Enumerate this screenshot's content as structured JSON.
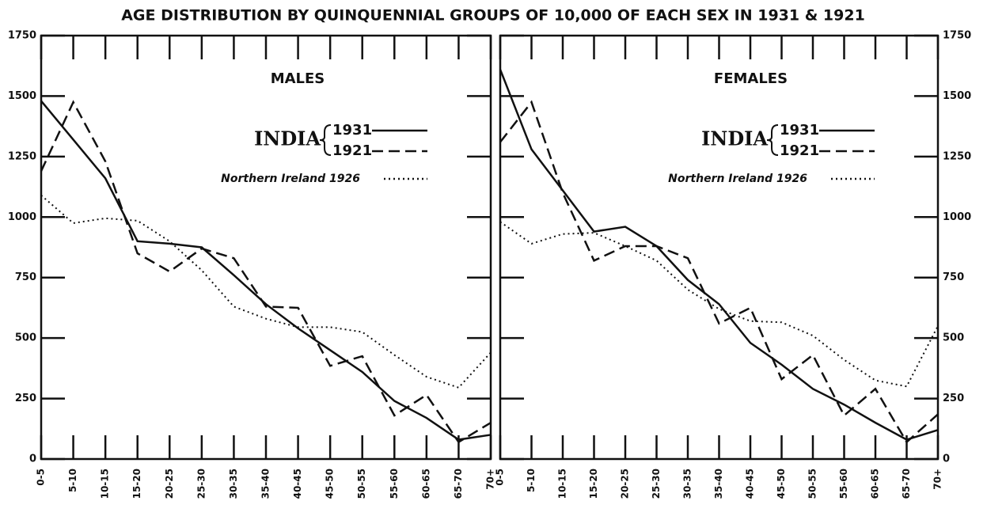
{
  "title": "AGE DISTRIBUTION BY QUINQUENNIAL GROUPS OF 10,000 OF EACH SEX IN 1931 & 1921",
  "chart_data": [
    {
      "type": "line",
      "subtitle": "MALES",
      "legend_title": "INDIA",
      "y_axis_side": "left",
      "categories": [
        "0-5",
        "5-10",
        "10-15",
        "15-20",
        "20-25",
        "25-30",
        "30-35",
        "35-40",
        "40-45",
        "45-50",
        "50-55",
        "55-60",
        "60-65",
        "65-70",
        "70+"
      ],
      "series": [
        {
          "name": "1931",
          "color": "#111111",
          "style": "solid",
          "values": [
            1480,
            1320,
            1160,
            900,
            890,
            875,
            760,
            640,
            540,
            450,
            360,
            240,
            170,
            80,
            100
          ]
        },
        {
          "name": "1921",
          "color": "#111111",
          "style": "dashed",
          "values": [
            1190,
            1475,
            1230,
            850,
            775,
            870,
            830,
            630,
            625,
            385,
            425,
            180,
            265,
            70,
            150
          ]
        },
        {
          "name": "Northern Ireland 1926",
          "color": "#111111",
          "style": "dotted",
          "values": [
            1090,
            975,
            995,
            985,
            900,
            780,
            630,
            580,
            545,
            545,
            525,
            430,
            340,
            295,
            440
          ]
        }
      ],
      "ylim": [
        0,
        1750
      ],
      "yticks": [
        0,
        250,
        500,
        750,
        1000,
        1250,
        1500,
        1750
      ]
    },
    {
      "type": "line",
      "subtitle": "FEMALES",
      "legend_title": "INDIA",
      "y_axis_side": "right",
      "categories": [
        "0-5",
        "5-10",
        "10-15",
        "15-20",
        "20-25",
        "25-30",
        "30-35",
        "35-40",
        "40-45",
        "45-50",
        "50-55",
        "55-60",
        "60-65",
        "65-70",
        "70+"
      ],
      "series": [
        {
          "name": "1931",
          "color": "#111111",
          "style": "solid",
          "values": [
            1610,
            1280,
            1110,
            940,
            960,
            880,
            740,
            640,
            480,
            390,
            290,
            225,
            150,
            80,
            120
          ]
        },
        {
          "name": "1921",
          "color": "#111111",
          "style": "dashed",
          "values": [
            1310,
            1475,
            1100,
            820,
            880,
            880,
            830,
            560,
            625,
            330,
            430,
            180,
            290,
            70,
            185
          ]
        },
        {
          "name": "Northern Ireland 1926",
          "color": "#111111",
          "style": "dotted",
          "values": [
            980,
            890,
            930,
            935,
            880,
            820,
            700,
            620,
            570,
            565,
            510,
            410,
            325,
            300,
            550
          ]
        }
      ],
      "ylim": [
        0,
        1750
      ],
      "yticks": [
        0,
        250,
        500,
        750,
        1000,
        1250,
        1500,
        1750
      ]
    }
  ]
}
